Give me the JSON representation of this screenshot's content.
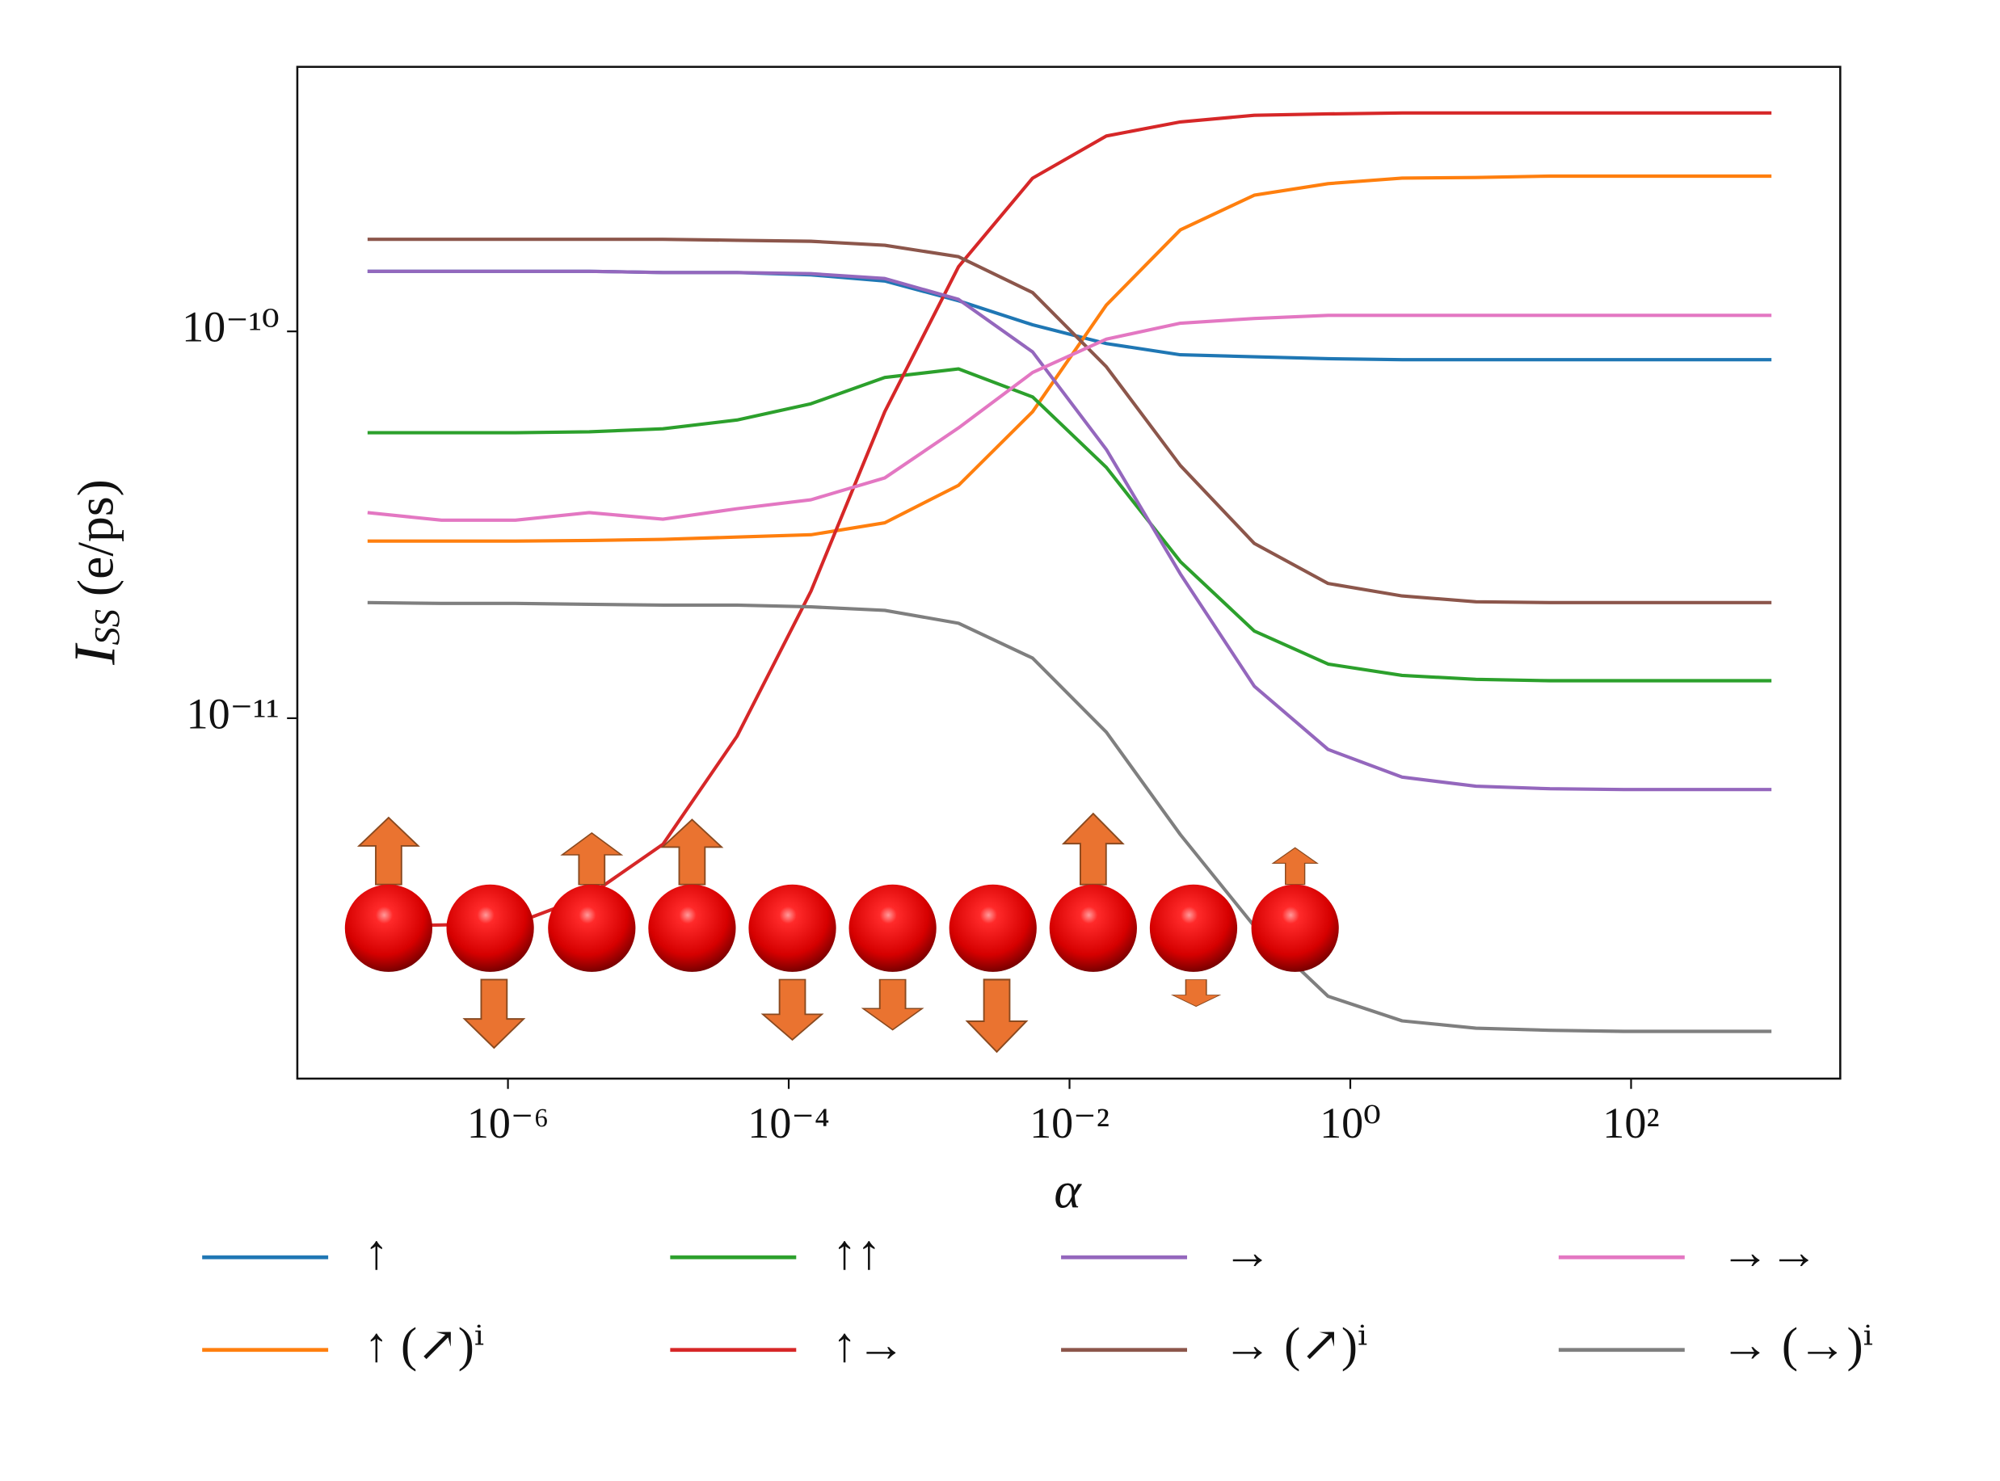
{
  "chart_data": {
    "type": "line",
    "ylabel": "I_SS (e/ps)",
    "xlabel": "α",
    "xscale": "log",
    "yscale": "log",
    "x": [
      1e-07,
      3.36e-07,
      1.13e-06,
      3.79e-06,
      1.27e-05,
      4.28e-05,
      0.000144,
      0.000483,
      0.00162,
      0.00546,
      0.0183,
      0.0616,
      0.207,
      0.695,
      2.34,
      7.85,
      26.4,
      88.6,
      298,
      1000
    ],
    "xlim": [
      3.16e-08,
      3090
    ],
    "ylim": [
      1.17e-12,
      4.83e-10
    ],
    "xticks": [
      {
        "value": 1e-06,
        "label": "10⁻⁶"
      },
      {
        "value": 0.0001,
        "label": "10⁻⁴"
      },
      {
        "value": 0.01,
        "label": "10⁻²"
      },
      {
        "value": 1,
        "label": "10⁰"
      },
      {
        "value": 100,
        "label": "10²"
      }
    ],
    "yticks": [
      {
        "value": 1e-11,
        "label": "10⁻¹¹"
      },
      {
        "value": 1e-10,
        "label": "10⁻¹⁰"
      }
    ],
    "grid": false,
    "series": [
      {
        "name": "↑",
        "color": "#1f77b4",
        "values": [
          1.43e-10,
          1.43e-10,
          1.43e-10,
          1.43e-10,
          1.42e-10,
          1.42e-10,
          1.4e-10,
          1.35e-10,
          1.2e-10,
          1.04e-10,
          9.3e-11,
          8.7e-11,
          8.6e-11,
          8.5e-11,
          8.45e-11,
          8.45e-11,
          8.45e-11,
          8.45e-11,
          8.45e-11,
          8.45e-11
        ]
      },
      {
        "name": "↑ (↗)ⁱ",
        "color": "#ff7f0e",
        "values": [
          2.87e-11,
          2.87e-11,
          2.87e-11,
          2.88e-11,
          2.9e-11,
          2.94e-11,
          2.98e-11,
          3.2e-11,
          4e-11,
          6.2e-11,
          1.17e-10,
          1.83e-10,
          2.25e-10,
          2.41e-10,
          2.49e-10,
          2.5e-10,
          2.52e-10,
          2.52e-10,
          2.52e-10,
          2.52e-10
        ]
      },
      {
        "name": "↑↑",
        "color": "#2ca02c",
        "values": [
          5.47e-11,
          5.47e-11,
          5.47e-11,
          5.5e-11,
          5.6e-11,
          5.9e-11,
          6.5e-11,
          7.6e-11,
          8e-11,
          6.77e-11,
          4.45e-11,
          2.54e-11,
          1.68e-11,
          1.38e-11,
          1.29e-11,
          1.26e-11,
          1.25e-11,
          1.25e-11,
          1.25e-11,
          1.25e-11
        ]
      },
      {
        "name": "↑→",
        "color": "#d62728",
        "values": [
          2.9e-12,
          2.92e-12,
          2.95e-12,
          3.48e-12,
          4.72e-12,
          8.98e-12,
          2.13e-11,
          6.2e-11,
          1.47e-10,
          2.49e-10,
          3.2e-10,
          3.48e-10,
          3.62e-10,
          3.65e-10,
          3.67e-10,
          3.67e-10,
          3.67e-10,
          3.67e-10,
          3.67e-10,
          3.67e-10
        ]
      },
      {
        "name": "→",
        "color": "#9467bd",
        "values": [
          1.43e-10,
          1.43e-10,
          1.43e-10,
          1.43e-10,
          1.42e-10,
          1.42e-10,
          1.41e-10,
          1.37e-10,
          1.21e-10,
          8.85e-11,
          4.95e-11,
          2.36e-11,
          1.21e-11,
          8.3e-12,
          7.04e-12,
          6.67e-12,
          6.57e-12,
          6.54e-12,
          6.54e-12,
          6.54e-12
        ]
      },
      {
        "name": "→ (↗)ⁱ",
        "color": "#8c564b",
        "values": [
          1.73e-10,
          1.73e-10,
          1.73e-10,
          1.73e-10,
          1.73e-10,
          1.72e-10,
          1.71e-10,
          1.67e-10,
          1.56e-10,
          1.26e-10,
          8.1e-11,
          4.5e-11,
          2.83e-11,
          2.23e-11,
          2.07e-11,
          2e-11,
          1.99e-11,
          1.99e-11,
          1.99e-11,
          1.99e-11
        ]
      },
      {
        "name": "→→",
        "color": "#e377c2",
        "values": [
          3.4e-11,
          3.25e-11,
          3.25e-11,
          3.4e-11,
          3.27e-11,
          3.48e-11,
          3.67e-11,
          4.18e-11,
          5.63e-11,
          7.83e-11,
          9.55e-11,
          1.05e-10,
          1.08e-10,
          1.1e-10,
          1.1e-10,
          1.1e-10,
          1.1e-10,
          1.1e-10,
          1.1e-10,
          1.1e-10
        ]
      },
      {
        "name": "→ (→)ⁱ",
        "color": "#7f7f7f",
        "values": [
          1.99e-11,
          1.98e-11,
          1.98e-11,
          1.97e-11,
          1.96e-11,
          1.96e-11,
          1.94e-11,
          1.9e-11,
          1.76e-11,
          1.43e-11,
          9.2e-12,
          5e-12,
          2.9e-12,
          1.91e-12,
          1.65e-12,
          1.58e-12,
          1.56e-12,
          1.55e-12,
          1.55e-12,
          1.55e-12
        ]
      }
    ]
  }
}
